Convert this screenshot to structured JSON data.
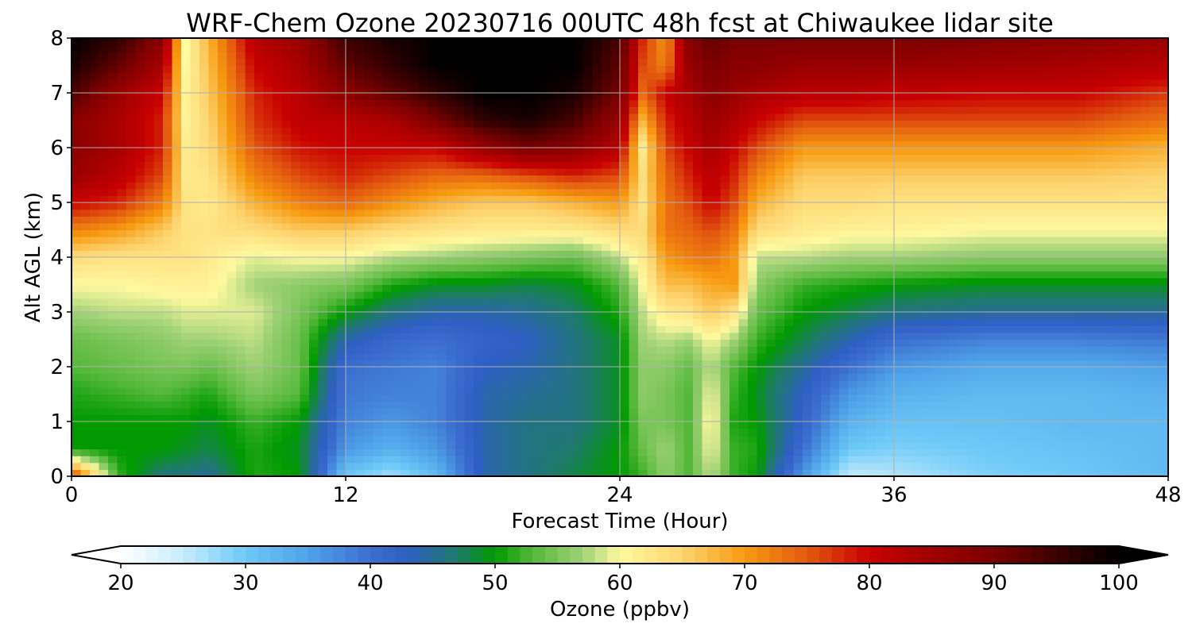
{
  "chart_data": {
    "type": "heatmap",
    "title": "WRF-Chem Ozone  20230716 00UTC 48h fcst at Chiwaukee lidar site",
    "xlabel": "Forecast Time (Hour)",
    "ylabel": "Alt AGL (km)",
    "xlim": [
      0,
      48
    ],
    "ylim": [
      0,
      8
    ],
    "xticks": [
      0,
      12,
      24,
      36,
      48
    ],
    "yticks": [
      0,
      1,
      2,
      3,
      4,
      5,
      6,
      7,
      8
    ],
    "grid": true,
    "x": [
      0,
      2,
      4,
      5,
      6,
      8,
      10,
      12,
      14,
      16,
      18,
      20,
      22,
      24,
      25,
      26,
      27,
      28,
      29,
      30,
      32,
      34,
      36,
      40,
      44,
      48
    ],
    "y": [
      0,
      0.5,
      1,
      1.5,
      2,
      2.5,
      3,
      3.5,
      4,
      4.5,
      5,
      5.5,
      6,
      6.5,
      7,
      7.5,
      8
    ],
    "z": [
      [
        78,
        52,
        46,
        46,
        45,
        51,
        50,
        30,
        27,
        32,
        44,
        46,
        48,
        50,
        52,
        56,
        53,
        58,
        52,
        50,
        36,
        25,
        26,
        29,
        30,
        32
      ],
      [
        50,
        50,
        50,
        49,
        48,
        51,
        49,
        36,
        33,
        36,
        44,
        46,
        47,
        50,
        54,
        57,
        53,
        60,
        52,
        51,
        40,
        30,
        29,
        30,
        31,
        32
      ],
      [
        50,
        50,
        50,
        50,
        49,
        52,
        50,
        38,
        36,
        38,
        44,
        46,
        46,
        49,
        55,
        55,
        53,
        61,
        51,
        50,
        42,
        33,
        31,
        31,
        32,
        32
      ],
      [
        51,
        52,
        53,
        52,
        51,
        55,
        53,
        39,
        38,
        38,
        44,
        45,
        46,
        49,
        56,
        55,
        53,
        60,
        52,
        49,
        43,
        36,
        33,
        32,
        32,
        33
      ],
      [
        53,
        54,
        55,
        55,
        54,
        57,
        54,
        40,
        39,
        38,
        43,
        44,
        46,
        49,
        56,
        56,
        54,
        58,
        53,
        50,
        45,
        40,
        36,
        34,
        34,
        35
      ],
      [
        54,
        55,
        56,
        57,
        57,
        58,
        54,
        44,
        41,
        40,
        42,
        43,
        46,
        49,
        57,
        58,
        57,
        60,
        57,
        52,
        48,
        44,
        40,
        38,
        38,
        39
      ],
      [
        57,
        58,
        58,
        59,
        59,
        59,
        55,
        50,
        46,
        44,
        44,
        45,
        47,
        51,
        58,
        62,
        63,
        66,
        63,
        54,
        50,
        48,
        46,
        45,
        45,
        45
      ],
      [
        60,
        60,
        61,
        61,
        61,
        57,
        56,
        55,
        51,
        49,
        49,
        48,
        49,
        53,
        60,
        67,
        67,
        69,
        70,
        56,
        52,
        51,
        50,
        49,
        49,
        49
      ],
      [
        64,
        63,
        63,
        63,
        62,
        59,
        60,
        60,
        58,
        57,
        56,
        55,
        54,
        58,
        62,
        70,
        72,
        73,
        70,
        58,
        58,
        57,
        57,
        56,
        56,
        56
      ],
      [
        72,
        70,
        66,
        63,
        63,
        64,
        66,
        66,
        64,
        63,
        62,
        62,
        62,
        64,
        64,
        73,
        74,
        76,
        73,
        64,
        62,
        61,
        61,
        60,
        60,
        60
      ],
      [
        80,
        78,
        72,
        63,
        62,
        68,
        72,
        74,
        71,
        68,
        66,
        66,
        68,
        70,
        63,
        73,
        76,
        80,
        76,
        68,
        64,
        64,
        63,
        63,
        63,
        63
      ],
      [
        86,
        82,
        76,
        62,
        63,
        72,
        76,
        78,
        76,
        74,
        74,
        76,
        78,
        76,
        64,
        74,
        78,
        82,
        78,
        72,
        66,
        66,
        66,
        66,
        66,
        65
      ],
      [
        88,
        84,
        78,
        62,
        64,
        75,
        79,
        80,
        80,
        80,
        86,
        90,
        88,
        82,
        62,
        76,
        80,
        84,
        80,
        76,
        70,
        70,
        70,
        70,
        70,
        68
      ],
      [
        88,
        84,
        78,
        61,
        65,
        77,
        81,
        82,
        84,
        90,
        96,
        98,
        94,
        86,
        68,
        78,
        82,
        86,
        83,
        80,
        76,
        76,
        76,
        76,
        76,
        73
      ],
      [
        94,
        86,
        80,
        61,
        66,
        78,
        82,
        88,
        92,
        96,
        100,
        100,
        98,
        90,
        74,
        80,
        84,
        88,
        86,
        84,
        82,
        82,
        81,
        80,
        80,
        77
      ],
      [
        98,
        92,
        84,
        60,
        67,
        80,
        84,
        92,
        96,
        100,
        100,
        100,
        100,
        92,
        76,
        72,
        86,
        90,
        88,
        88,
        86,
        86,
        86,
        85,
        84,
        82
      ],
      [
        100,
        96,
        88,
        60,
        68,
        82,
        86,
        95,
        98,
        100,
        100,
        100,
        100,
        94,
        78,
        70,
        88,
        92,
        90,
        90,
        90,
        90,
        90,
        89,
        88,
        86
      ]
    ],
    "colorbar": {
      "label": "Ozone  (ppbv)",
      "min": 20,
      "max": 100,
      "ticks": [
        20,
        30,
        40,
        50,
        60,
        70,
        80,
        90,
        100
      ],
      "extend": "both",
      "under_color": "#ffffff",
      "over_color": "#000000",
      "colormap": [
        {
          "v": 20,
          "c": "#ffffff"
        },
        {
          "v": 25,
          "c": "#c8ecfb"
        },
        {
          "v": 30,
          "c": "#6cc9f7"
        },
        {
          "v": 35,
          "c": "#4fa2e8"
        },
        {
          "v": 40,
          "c": "#3b6ecf"
        },
        {
          "v": 43,
          "c": "#2e5fc4"
        },
        {
          "v": 47,
          "c": "#1e7a6a"
        },
        {
          "v": 50,
          "c": "#009a00"
        },
        {
          "v": 53,
          "c": "#55b83a"
        },
        {
          "v": 57,
          "c": "#9fd176"
        },
        {
          "v": 60,
          "c": "#fff9a0"
        },
        {
          "v": 65,
          "c": "#fdd470"
        },
        {
          "v": 70,
          "c": "#f79a10"
        },
        {
          "v": 75,
          "c": "#e35a10"
        },
        {
          "v": 80,
          "c": "#c80000"
        },
        {
          "v": 90,
          "c": "#7a0000"
        },
        {
          "v": 100,
          "c": "#000000"
        }
      ]
    }
  }
}
